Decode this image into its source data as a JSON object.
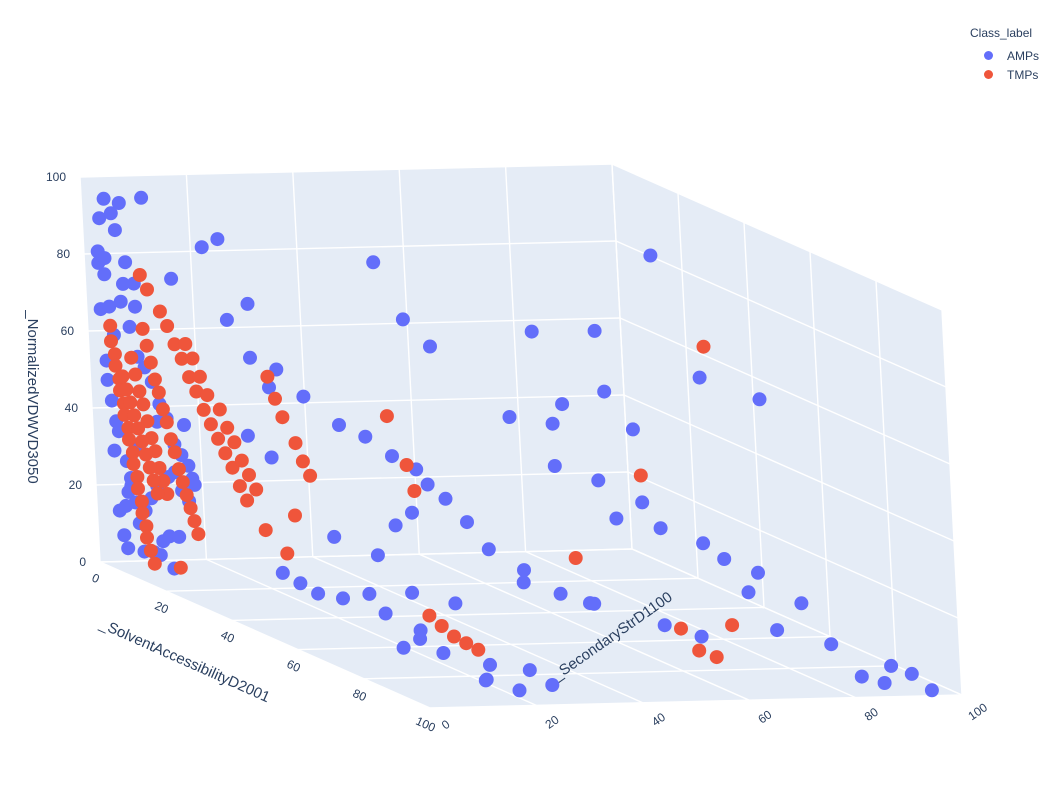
{
  "chart_data": {
    "type": "scatter",
    "legend_title": "Class_label",
    "legend_position": "top-right",
    "axes": {
      "x": {
        "title": "_SolventAccessibilityD2001",
        "range": [
          0,
          100
        ],
        "ticks": [
          "0",
          "20",
          "40",
          "60",
          "80",
          "100"
        ]
      },
      "y": {
        "title": "_SecondaryStrD1100",
        "range": [
          0,
          100
        ],
        "ticks": [
          "0",
          "20",
          "40",
          "60",
          "80",
          "100"
        ]
      },
      "z": {
        "title": "_NormalizedVDWVD3050",
        "range": [
          0,
          100
        ],
        "ticks": [
          "0",
          "20",
          "40",
          "60",
          "80",
          "100"
        ]
      }
    },
    "grid": true,
    "series": [
      {
        "name": "AMPs",
        "color": "#636efa",
        "points": [
          [
            2,
            3,
            95
          ],
          [
            2,
            2,
            90
          ],
          [
            4,
            3,
            92
          ],
          [
            5,
            3,
            88
          ],
          [
            5,
            4,
            95
          ],
          [
            1,
            2,
            81
          ],
          [
            1,
            2,
            78
          ],
          [
            1,
            3,
            75
          ],
          [
            3,
            2,
            80
          ],
          [
            6,
            4,
            80
          ],
          [
            1,
            2,
            66
          ],
          [
            2,
            3,
            67
          ],
          [
            3,
            3,
            60
          ],
          [
            4,
            4,
            69
          ],
          [
            5,
            4,
            74
          ],
          [
            12,
            4,
            99
          ],
          [
            20,
            4,
            81
          ],
          [
            10,
            3,
            76
          ],
          [
            10,
            3,
            70
          ],
          [
            8,
            3,
            64
          ],
          [
            2,
            2,
            53
          ],
          [
            2,
            2,
            48
          ],
          [
            3,
            2,
            43
          ],
          [
            4,
            2,
            38
          ],
          [
            3,
            3,
            35
          ],
          [
            3,
            2,
            30
          ],
          [
            5,
            3,
            28
          ],
          [
            6,
            3,
            22
          ],
          [
            4,
            3,
            16
          ],
          [
            2,
            3,
            14
          ],
          [
            3,
            3,
            8
          ],
          [
            4,
            3,
            5
          ],
          [
            8,
            3,
            13
          ],
          [
            9,
            3,
            6
          ],
          [
            12,
            3,
            7
          ],
          [
            15,
            3,
            11
          ],
          [
            14,
            3,
            7
          ],
          [
            17,
            3,
            13
          ],
          [
            20,
            3,
            14
          ],
          [
            18,
            3,
            5
          ],
          [
            10,
            3,
            57
          ],
          [
            12,
            3,
            55
          ],
          [
            14,
            3,
            52
          ],
          [
            16,
            3,
            47
          ],
          [
            18,
            3,
            44
          ],
          [
            15,
            3,
            42
          ],
          [
            20,
            3,
            38
          ],
          [
            22,
            3,
            36
          ],
          [
            24,
            3,
            34
          ],
          [
            25,
            3,
            31
          ],
          [
            35,
            4,
            97
          ],
          [
            30,
            4,
            93
          ],
          [
            40,
            6,
            82
          ],
          [
            35,
            5,
            76
          ],
          [
            42,
            8,
            61
          ],
          [
            38,
            6,
            47
          ],
          [
            45,
            6,
            44
          ],
          [
            20,
            5,
            43
          ],
          [
            8,
            3,
            33
          ],
          [
            6,
            3,
            24
          ],
          [
            5,
            3,
            20
          ],
          [
            7,
            3,
            18
          ],
          [
            10,
            3,
            17
          ],
          [
            12,
            3,
            21
          ],
          [
            14,
            3,
            25
          ],
          [
            16,
            4,
            28
          ],
          [
            18,
            4,
            30
          ],
          [
            20,
            4,
            26
          ],
          [
            22,
            4,
            24
          ],
          [
            24,
            4,
            29
          ],
          [
            40,
            30,
            92
          ],
          [
            45,
            32,
            79
          ],
          [
            48,
            35,
            73
          ],
          [
            30,
            12,
            64
          ],
          [
            33,
            15,
            62
          ],
          [
            36,
            18,
            56
          ],
          [
            40,
            22,
            50
          ],
          [
            43,
            25,
            48
          ],
          [
            46,
            28,
            44
          ],
          [
            50,
            30,
            42
          ],
          [
            40,
            20,
            21
          ],
          [
            45,
            25,
            18
          ],
          [
            40,
            10,
            12
          ],
          [
            42,
            12,
            10
          ],
          [
            44,
            14,
            8
          ],
          [
            50,
            20,
            10
          ],
          [
            55,
            25,
            12
          ],
          [
            60,
            30,
            11
          ],
          [
            50,
            15,
            9
          ],
          [
            58,
            18,
            8
          ],
          [
            62,
            22,
            5
          ],
          [
            65,
            20,
            4
          ],
          [
            68,
            15,
            3
          ],
          [
            72,
            20,
            3
          ],
          [
            78,
            25,
            2
          ],
          [
            82,
            30,
            2
          ],
          [
            85,
            20,
            1
          ],
          [
            88,
            18,
            2
          ],
          [
            95,
            20,
            2
          ],
          [
            97,
            25,
            4
          ],
          [
            60,
            70,
            100
          ],
          [
            58,
            60,
            80
          ],
          [
            55,
            50,
            79
          ],
          [
            60,
            60,
            65
          ],
          [
            55,
            55,
            60
          ],
          [
            55,
            45,
            57
          ],
          [
            60,
            50,
            57
          ],
          [
            65,
            62,
            57
          ],
          [
            70,
            72,
            72
          ],
          [
            75,
            80,
            68
          ],
          [
            60,
            50,
            46
          ],
          [
            65,
            55,
            44
          ],
          [
            70,
            60,
            40
          ],
          [
            70,
            55,
            36
          ],
          [
            72,
            62,
            34
          ],
          [
            75,
            68,
            31
          ],
          [
            78,
            70,
            28
          ],
          [
            80,
            75,
            25
          ],
          [
            85,
            70,
            22
          ],
          [
            88,
            78,
            20
          ],
          [
            70,
            50,
            14
          ],
          [
            75,
            60,
            10
          ],
          [
            78,
            65,
            8
          ],
          [
            85,
            75,
            12
          ],
          [
            90,
            82,
            10
          ],
          [
            95,
            90,
            6
          ],
          [
            98,
            92,
            5
          ],
          [
            96,
            88,
            2
          ],
          [
            94,
            85,
            3
          ],
          [
            99,
            95,
            1
          ],
          [
            65,
            40,
            18
          ],
          [
            68,
            45,
            16
          ],
          [
            72,
            48,
            15
          ],
          [
            62,
            42,
            20
          ],
          [
            58,
            38,
            24
          ],
          [
            55,
            36,
            30
          ],
          [
            52,
            34,
            35
          ],
          [
            50,
            32,
            38
          ],
          [
            48,
            30,
            30
          ],
          [
            46,
            28,
            26
          ]
        ]
      },
      {
        "name": "TMPs",
        "color": "#ef553b",
        "points": [
          [
            2,
            3,
            62
          ],
          [
            2,
            3,
            58
          ],
          [
            3,
            3,
            55
          ],
          [
            3,
            3,
            52
          ],
          [
            4,
            3,
            49
          ],
          [
            4,
            3,
            46
          ],
          [
            5,
            3,
            43
          ],
          [
            5,
            3,
            40
          ],
          [
            6,
            3,
            37
          ],
          [
            6,
            3,
            34
          ],
          [
            7,
            3,
            31
          ],
          [
            7,
            3,
            28
          ],
          [
            8,
            3,
            25
          ],
          [
            8,
            3,
            22
          ],
          [
            9,
            3,
            19
          ],
          [
            9,
            3,
            16
          ],
          [
            10,
            3,
            13
          ],
          [
            10,
            3,
            10
          ],
          [
            11,
            3,
            7
          ],
          [
            12,
            3,
            4
          ],
          [
            12,
            3,
            65
          ],
          [
            13,
            3,
            61
          ],
          [
            14,
            3,
            57
          ],
          [
            15,
            3,
            53
          ],
          [
            16,
            3,
            50
          ],
          [
            17,
            3,
            46
          ],
          [
            18,
            3,
            43
          ],
          [
            19,
            3,
            39
          ],
          [
            20,
            3,
            36
          ],
          [
            21,
            3,
            32
          ],
          [
            22,
            3,
            29
          ],
          [
            23,
            3,
            26
          ],
          [
            24,
            3,
            23
          ],
          [
            25,
            3,
            20
          ],
          [
            26,
            3,
            17
          ],
          [
            12,
            3,
            79
          ],
          [
            14,
            3,
            76
          ],
          [
            16,
            4,
            71
          ],
          [
            18,
            4,
            68
          ],
          [
            20,
            4,
            64
          ],
          [
            22,
            4,
            61
          ],
          [
            24,
            4,
            57
          ],
          [
            26,
            4,
            54
          ],
          [
            28,
            4,
            50
          ],
          [
            30,
            4,
            47
          ],
          [
            32,
            4,
            44
          ],
          [
            34,
            4,
            41
          ],
          [
            36,
            4,
            38
          ],
          [
            38,
            4,
            34
          ],
          [
            40,
            4,
            31
          ],
          [
            8,
            3,
            56
          ],
          [
            9,
            3,
            52
          ],
          [
            10,
            3,
            48
          ],
          [
            11,
            3,
            45
          ],
          [
            12,
            3,
            41
          ],
          [
            13,
            3,
            37
          ],
          [
            14,
            3,
            34
          ],
          [
            15,
            3,
            30
          ],
          [
            16,
            3,
            27
          ],
          [
            17,
            3,
            24
          ],
          [
            5,
            3,
            50
          ],
          [
            6,
            3,
            47
          ],
          [
            7,
            3,
            44
          ],
          [
            8,
            3,
            41
          ],
          [
            9,
            3,
            38
          ],
          [
            10,
            3,
            35
          ],
          [
            11,
            3,
            32
          ],
          [
            12,
            3,
            29
          ],
          [
            13,
            3,
            26
          ],
          [
            14,
            3,
            23
          ],
          [
            25,
            3,
            66
          ],
          [
            27,
            3,
            63
          ],
          [
            29,
            3,
            59
          ],
          [
            31,
            3,
            55
          ],
          [
            33,
            4,
            52
          ],
          [
            35,
            4,
            48
          ],
          [
            37,
            4,
            45
          ],
          [
            39,
            4,
            41
          ],
          [
            41,
            4,
            38
          ],
          [
            43,
            4,
            35
          ],
          [
            45,
            6,
            65
          ],
          [
            47,
            6,
            60
          ],
          [
            49,
            6,
            56
          ],
          [
            51,
            7,
            50
          ],
          [
            53,
            7,
            46
          ],
          [
            55,
            7,
            43
          ],
          [
            20,
            3,
            6
          ],
          [
            45,
            8,
            19
          ],
          [
            42,
            6,
            24
          ],
          [
            48,
            8,
            30
          ],
          [
            55,
            22,
            58
          ],
          [
            57,
            24,
            46
          ],
          [
            59,
            24,
            40
          ],
          [
            75,
            70,
            82
          ],
          [
            70,
            60,
            47
          ],
          [
            65,
            50,
            24
          ],
          [
            80,
            60,
            11
          ],
          [
            82,
            62,
            6
          ],
          [
            84,
            64,
            5
          ],
          [
            86,
            66,
            14
          ],
          [
            60,
            25,
            8
          ],
          [
            62,
            26,
            6
          ],
          [
            64,
            27,
            4
          ],
          [
            66,
            28,
            3
          ],
          [
            68,
            29,
            2
          ]
        ]
      }
    ]
  }
}
